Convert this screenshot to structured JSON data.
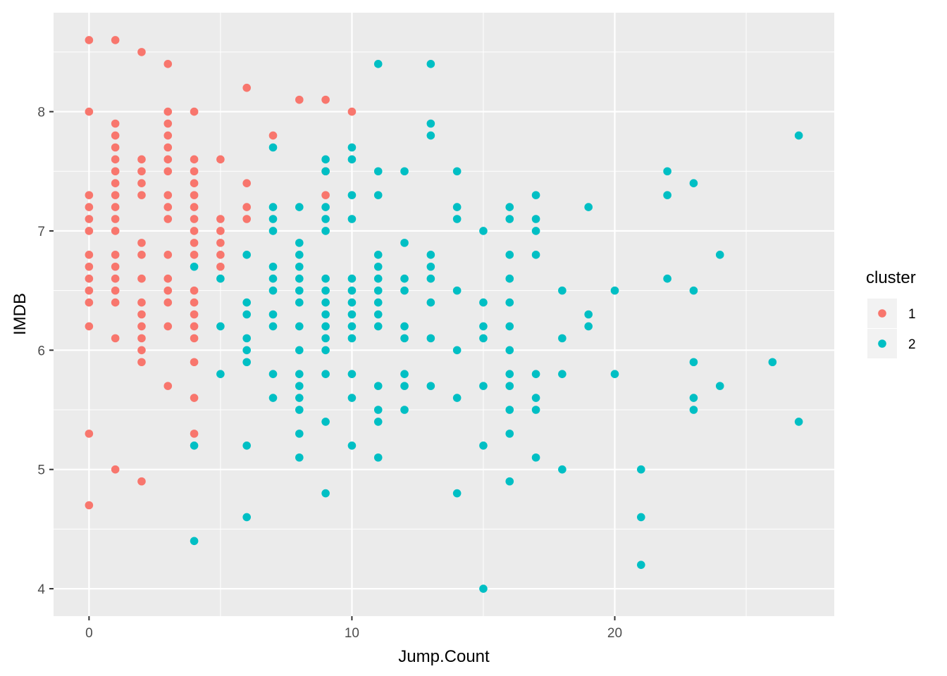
{
  "chart_data": {
    "type": "scatter",
    "xlabel": "Jump.Count",
    "ylabel": "IMDB",
    "xlim": [
      -1.35,
      28.35
    ],
    "ylim": [
      3.77,
      8.83
    ],
    "x_ticks": [
      0,
      10,
      20
    ],
    "y_ticks": [
      4,
      5,
      6,
      7,
      8
    ],
    "grid": true,
    "legend": {
      "title": "cluster",
      "position": "right"
    },
    "series": [
      {
        "name": "1",
        "color": "#F8766D",
        "points": [
          [
            0,
            8.6
          ],
          [
            0,
            8.0
          ],
          [
            0,
            7.3
          ],
          [
            0,
            7.2
          ],
          [
            0,
            7.1
          ],
          [
            0,
            7.0
          ],
          [
            0,
            6.8
          ],
          [
            0,
            6.7
          ],
          [
            0,
            6.6
          ],
          [
            0,
            6.5
          ],
          [
            0,
            6.4
          ],
          [
            0,
            6.2
          ],
          [
            0,
            5.3
          ],
          [
            0,
            4.7
          ],
          [
            1,
            8.6
          ],
          [
            1,
            7.9
          ],
          [
            1,
            7.8
          ],
          [
            1,
            7.7
          ],
          [
            1,
            7.6
          ],
          [
            1,
            7.5
          ],
          [
            1,
            7.4
          ],
          [
            1,
            7.3
          ],
          [
            1,
            7.2
          ],
          [
            1,
            7.1
          ],
          [
            1,
            7.0
          ],
          [
            1,
            6.8
          ],
          [
            1,
            6.7
          ],
          [
            1,
            6.6
          ],
          [
            1,
            6.5
          ],
          [
            1,
            6.4
          ],
          [
            1,
            6.1
          ],
          [
            1,
            5.0
          ],
          [
            2,
            8.5
          ],
          [
            2,
            7.6
          ],
          [
            2,
            7.5
          ],
          [
            2,
            7.4
          ],
          [
            2,
            7.3
          ],
          [
            2,
            6.9
          ],
          [
            2,
            6.8
          ],
          [
            2,
            6.6
          ],
          [
            2,
            6.4
          ],
          [
            2,
            6.3
          ],
          [
            2,
            6.2
          ],
          [
            2,
            6.1
          ],
          [
            2,
            6.0
          ],
          [
            2,
            5.9
          ],
          [
            2,
            4.9
          ],
          [
            3,
            8.4
          ],
          [
            3,
            8.0
          ],
          [
            3,
            7.9
          ],
          [
            3,
            7.8
          ],
          [
            3,
            7.7
          ],
          [
            3,
            7.6
          ],
          [
            3,
            7.5
          ],
          [
            3,
            7.3
          ],
          [
            3,
            7.2
          ],
          [
            3,
            7.1
          ],
          [
            3,
            6.8
          ],
          [
            3,
            6.6
          ],
          [
            3,
            6.5
          ],
          [
            3,
            6.4
          ],
          [
            3,
            6.2
          ],
          [
            3,
            5.7
          ],
          [
            4,
            8.0
          ],
          [
            4,
            7.6
          ],
          [
            4,
            7.5
          ],
          [
            4,
            7.4
          ],
          [
            4,
            7.3
          ],
          [
            4,
            7.2
          ],
          [
            4,
            7.1
          ],
          [
            4,
            7.0
          ],
          [
            4,
            6.9
          ],
          [
            4,
            6.8
          ],
          [
            4,
            6.5
          ],
          [
            4,
            6.4
          ],
          [
            4,
            6.3
          ],
          [
            4,
            6.2
          ],
          [
            4,
            6.1
          ],
          [
            4,
            5.9
          ],
          [
            4,
            5.6
          ],
          [
            4,
            5.3
          ],
          [
            5,
            7.6
          ],
          [
            5,
            7.1
          ],
          [
            5,
            7.0
          ],
          [
            5,
            6.9
          ],
          [
            5,
            6.8
          ],
          [
            5,
            6.7
          ],
          [
            6,
            8.2
          ],
          [
            6,
            7.4
          ],
          [
            6,
            7.2
          ],
          [
            6,
            7.1
          ],
          [
            7,
            7.8
          ],
          [
            8,
            8.1
          ],
          [
            9,
            8.1
          ],
          [
            9,
            7.5
          ],
          [
            9,
            7.3
          ],
          [
            10,
            8.0
          ]
        ]
      },
      {
        "name": "2",
        "color": "#00BFC4",
        "points": [
          [
            4,
            6.7
          ],
          [
            4,
            5.2
          ],
          [
            4,
            4.4
          ],
          [
            5,
            6.6
          ],
          [
            5,
            6.2
          ],
          [
            5,
            5.8
          ],
          [
            6,
            6.8
          ],
          [
            6,
            6.4
          ],
          [
            6,
            6.3
          ],
          [
            6,
            6.1
          ],
          [
            6,
            6.0
          ],
          [
            6,
            5.9
          ],
          [
            6,
            5.2
          ],
          [
            6,
            4.6
          ],
          [
            7,
            7.7
          ],
          [
            7,
            7.2
          ],
          [
            7,
            7.1
          ],
          [
            7,
            7.0
          ],
          [
            7,
            6.7
          ],
          [
            7,
            6.6
          ],
          [
            7,
            6.5
          ],
          [
            7,
            6.3
          ],
          [
            7,
            6.2
          ],
          [
            7,
            5.8
          ],
          [
            7,
            5.6
          ],
          [
            8,
            7.2
          ],
          [
            8,
            6.9
          ],
          [
            8,
            6.8
          ],
          [
            8,
            6.7
          ],
          [
            8,
            6.6
          ],
          [
            8,
            6.5
          ],
          [
            8,
            6.4
          ],
          [
            8,
            6.2
          ],
          [
            8,
            6.0
          ],
          [
            8,
            5.8
          ],
          [
            8,
            5.7
          ],
          [
            8,
            5.6
          ],
          [
            8,
            5.5
          ],
          [
            8,
            5.3
          ],
          [
            8,
            5.1
          ],
          [
            9,
            7.6
          ],
          [
            9,
            7.5
          ],
          [
            9,
            7.2
          ],
          [
            9,
            7.1
          ],
          [
            9,
            7.0
          ],
          [
            9,
            6.6
          ],
          [
            9,
            6.5
          ],
          [
            9,
            6.4
          ],
          [
            9,
            6.3
          ],
          [
            9,
            6.2
          ],
          [
            9,
            6.1
          ],
          [
            9,
            6.0
          ],
          [
            9,
            5.8
          ],
          [
            9,
            5.4
          ],
          [
            9,
            4.8
          ],
          [
            10,
            7.7
          ],
          [
            10,
            7.6
          ],
          [
            10,
            7.3
          ],
          [
            10,
            7.1
          ],
          [
            10,
            6.6
          ],
          [
            10,
            6.5
          ],
          [
            10,
            6.4
          ],
          [
            10,
            6.3
          ],
          [
            10,
            6.2
          ],
          [
            10,
            6.1
          ],
          [
            10,
            5.8
          ],
          [
            10,
            5.6
          ],
          [
            10,
            5.2
          ],
          [
            11,
            8.4
          ],
          [
            11,
            7.5
          ],
          [
            11,
            7.3
          ],
          [
            11,
            6.8
          ],
          [
            11,
            6.7
          ],
          [
            11,
            6.6
          ],
          [
            11,
            6.5
          ],
          [
            11,
            6.4
          ],
          [
            11,
            6.3
          ],
          [
            11,
            6.2
          ],
          [
            11,
            5.7
          ],
          [
            11,
            5.5
          ],
          [
            11,
            5.4
          ],
          [
            11,
            5.1
          ],
          [
            12,
            7.5
          ],
          [
            12,
            6.9
          ],
          [
            12,
            6.6
          ],
          [
            12,
            6.5
          ],
          [
            12,
            6.2
          ],
          [
            12,
            6.1
          ],
          [
            12,
            5.8
          ],
          [
            12,
            5.7
          ],
          [
            12,
            5.5
          ],
          [
            13,
            8.4
          ],
          [
            13,
            7.9
          ],
          [
            13,
            7.8
          ],
          [
            13,
            6.8
          ],
          [
            13,
            6.7
          ],
          [
            13,
            6.6
          ],
          [
            13,
            6.4
          ],
          [
            13,
            6.1
          ],
          [
            13,
            5.7
          ],
          [
            14,
            7.5
          ],
          [
            14,
            7.2
          ],
          [
            14,
            7.1
          ],
          [
            14,
            6.5
          ],
          [
            14,
            6.0
          ],
          [
            14,
            5.6
          ],
          [
            14,
            4.8
          ],
          [
            15,
            7.0
          ],
          [
            15,
            6.4
          ],
          [
            15,
            6.2
          ],
          [
            15,
            6.1
          ],
          [
            15,
            5.7
          ],
          [
            15,
            5.2
          ],
          [
            15,
            4.0
          ],
          [
            16,
            7.2
          ],
          [
            16,
            7.1
          ],
          [
            16,
            6.8
          ],
          [
            16,
            6.6
          ],
          [
            16,
            6.4
          ],
          [
            16,
            6.2
          ],
          [
            16,
            6.0
          ],
          [
            16,
            5.8
          ],
          [
            16,
            5.7
          ],
          [
            16,
            5.5
          ],
          [
            16,
            5.3
          ],
          [
            16,
            4.9
          ],
          [
            17,
            7.3
          ],
          [
            17,
            7.1
          ],
          [
            17,
            7.0
          ],
          [
            17,
            6.8
          ],
          [
            17,
            5.8
          ],
          [
            17,
            5.6
          ],
          [
            17,
            5.5
          ],
          [
            17,
            5.1
          ],
          [
            18,
            6.5
          ],
          [
            18,
            6.1
          ],
          [
            18,
            5.8
          ],
          [
            18,
            5.0
          ],
          [
            19,
            7.2
          ],
          [
            19,
            6.3
          ],
          [
            19,
            6.2
          ],
          [
            20,
            6.5
          ],
          [
            20,
            5.8
          ],
          [
            21,
            5.0
          ],
          [
            21,
            4.6
          ],
          [
            21,
            4.2
          ],
          [
            22,
            7.5
          ],
          [
            22,
            7.3
          ],
          [
            22,
            6.6
          ],
          [
            23,
            7.4
          ],
          [
            23,
            6.5
          ],
          [
            23,
            5.9
          ],
          [
            23,
            5.6
          ],
          [
            23,
            5.5
          ],
          [
            24,
            6.8
          ],
          [
            24,
            5.7
          ],
          [
            26,
            5.9
          ],
          [
            27,
            7.8
          ],
          [
            27,
            5.4
          ]
        ]
      }
    ]
  }
}
